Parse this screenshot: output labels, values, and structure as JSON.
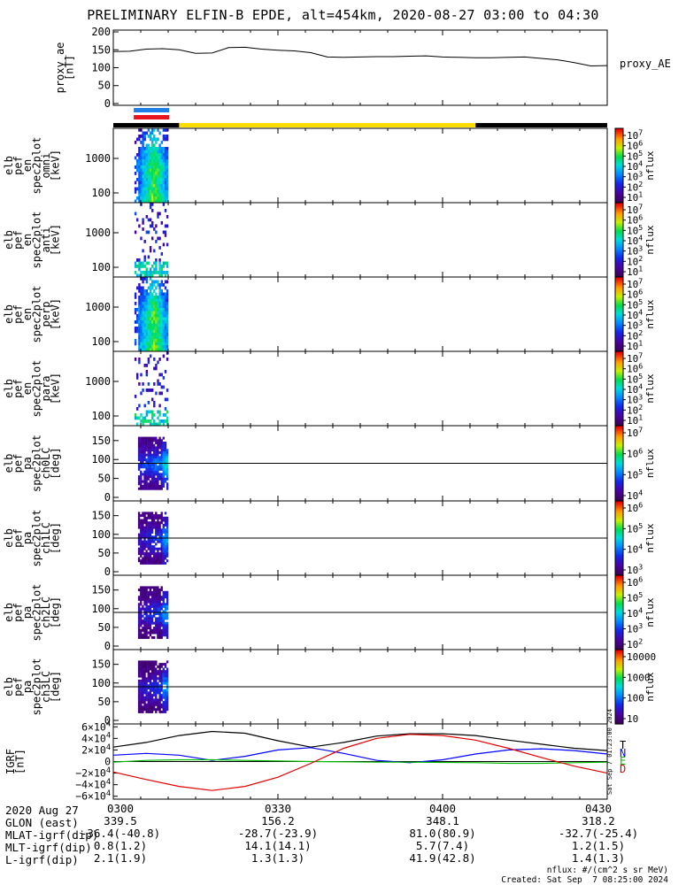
{
  "title": "PRELIMINARY ELFIN-B EPDE, alt=454km, 2020-08-27 03:00 to 04:30",
  "chart_data": [
    {
      "id": "proxy_ae",
      "type": "line",
      "ylabel_lines": [
        "proxy_ae",
        "[nT]"
      ],
      "legend": "proxy_AE",
      "yticks": [
        "200",
        "150",
        "100",
        "50",
        "0"
      ],
      "ylim": [
        -5,
        205
      ],
      "x_minutes": [
        0,
        3,
        6,
        9,
        12,
        15,
        18,
        21,
        24,
        27,
        30,
        33,
        36,
        39,
        42,
        45,
        48,
        51,
        54,
        57,
        60,
        63,
        66,
        69,
        72,
        75,
        78,
        81,
        84,
        87,
        90
      ],
      "values": [
        145,
        146,
        152,
        153,
        150,
        140,
        141,
        156,
        157,
        152,
        149,
        147,
        142,
        130,
        129,
        130,
        131,
        131,
        132,
        133,
        130,
        129,
        128,
        128,
        129,
        130,
        126,
        122,
        114,
        105,
        106
      ]
    },
    {
      "id": "orbit_bars",
      "type": "table",
      "segments": [
        {
          "color": "#000000",
          "start_min": 0,
          "end_min": 12
        },
        {
          "color": "#ffdd00",
          "start_min": 12,
          "end_min": 66
        },
        {
          "color": "#000000",
          "start_min": 66,
          "end_min": 90
        }
      ],
      "markers": [
        {
          "color": "#1e7fe8",
          "start_min": 0.5,
          "end_min": 7.0
        },
        {
          "color": "#e8141e",
          "start_min": 0.5,
          "end_min": 7.0
        }
      ]
    },
    {
      "id": "spec_omni",
      "type": "heatmap",
      "ylabel_lines": [
        "elb",
        "pef",
        "en",
        "spec2plot",
        "omni",
        "[keV]"
      ],
      "yticks": [
        "1000",
        "100"
      ],
      "colorbar_ticks": [
        "10^7",
        "10^6",
        "10^5",
        "10^4",
        "10^3",
        "10^2",
        "10^1"
      ],
      "colorbar_label": "nflux",
      "active_interval_min": [
        1.6,
        7.1
      ]
    },
    {
      "id": "spec_anti",
      "type": "heatmap",
      "ylabel_lines": [
        "elb",
        "pef",
        "en",
        "spec2plot",
        "anti",
        "[keV]"
      ],
      "yticks": [
        "1000",
        "100"
      ],
      "colorbar_ticks": [
        "10^7",
        "10^6",
        "10^5",
        "10^4",
        "10^3",
        "10^2",
        "10^1"
      ],
      "colorbar_label": "nflux",
      "active_interval_min": [
        1.6,
        7.1
      ]
    },
    {
      "id": "spec_perp",
      "type": "heatmap",
      "ylabel_lines": [
        "elb",
        "pef",
        "en",
        "spec2plot",
        "perp",
        "[keV]"
      ],
      "yticks": [
        "1000",
        "100"
      ],
      "colorbar_ticks": [
        "10^7",
        "10^6",
        "10^5",
        "10^4",
        "10^3",
        "10^2",
        "10^1"
      ],
      "colorbar_label": "nflux",
      "active_interval_min": [
        1.6,
        7.1
      ]
    },
    {
      "id": "spec_para",
      "type": "heatmap",
      "ylabel_lines": [
        "elb",
        "pef",
        "en",
        "spec2plot",
        "para",
        "[keV]"
      ],
      "yticks": [
        "1000",
        "100"
      ],
      "colorbar_ticks": [
        "10^7",
        "10^6",
        "10^5",
        "10^4",
        "10^3",
        "10^2",
        "10^1"
      ],
      "colorbar_label": "nflux",
      "active_interval_min": [
        1.6,
        7.1
      ]
    },
    {
      "id": "pa_ch0",
      "type": "heatmap",
      "ylabel_lines": [
        "elb",
        "pef",
        "pa",
        "spec2plot",
        "ch0LC",
        "[deg]"
      ],
      "yticks": [
        "150",
        "100",
        "50",
        "0"
      ],
      "ylim": [
        0,
        180
      ],
      "colorbar_ticks": [
        "10^7",
        "10^6",
        "10^5",
        "10^4"
      ],
      "colorbar_label": "nflux",
      "active_interval_min": [
        1.6,
        7.1
      ]
    },
    {
      "id": "pa_ch1",
      "type": "heatmap",
      "ylabel_lines": [
        "elb",
        "pef",
        "pa",
        "spec2plot",
        "ch1LC",
        "[deg]"
      ],
      "yticks": [
        "150",
        "100",
        "50",
        "0"
      ],
      "ylim": [
        0,
        180
      ],
      "colorbar_ticks": [
        "10^6",
        "10^5",
        "10^4",
        "10^3"
      ],
      "colorbar_label": "nflux",
      "active_interval_min": [
        1.6,
        7.1
      ]
    },
    {
      "id": "pa_ch2",
      "type": "heatmap",
      "ylabel_lines": [
        "elb",
        "pef",
        "pa",
        "spec2plot",
        "ch2LC",
        "[deg]"
      ],
      "yticks": [
        "150",
        "100",
        "50",
        "0"
      ],
      "ylim": [
        0,
        180
      ],
      "colorbar_ticks": [
        "10^6",
        "10^5",
        "10^4",
        "10^3",
        "10^2"
      ],
      "colorbar_label": "nflux",
      "active_interval_min": [
        1.6,
        7.1
      ]
    },
    {
      "id": "pa_ch3",
      "type": "heatmap",
      "ylabel_lines": [
        "elb",
        "pef",
        "pa",
        "spec2plot",
        "ch3LC",
        "[deg]"
      ],
      "yticks": [
        "150",
        "100",
        "50",
        "0"
      ],
      "ylim": [
        0,
        180
      ],
      "colorbar_ticks": [
        "10000",
        "1000",
        "100",
        "10"
      ],
      "colorbar_label": "nflux",
      "active_interval_min": [
        1.6,
        7.1
      ]
    },
    {
      "id": "igrf",
      "type": "line",
      "ylabel_lines": [
        "IGRF",
        "[nT]"
      ],
      "yticks": [
        "6×10^4",
        "4×10^4",
        "2×10^4",
        "0",
        "−2×10^4",
        "−4×10^4",
        "−6×10^4"
      ],
      "ylim": [
        -65000,
        65000
      ],
      "legend": [
        "T",
        "N",
        "E",
        "D"
      ],
      "side_note": "Sat Sep  7 01:23:00 2024",
      "x_minutes": [
        0,
        6,
        12,
        18,
        24,
        30,
        36,
        42,
        48,
        54,
        60,
        66,
        72,
        78,
        84,
        90
      ],
      "series": [
        {
          "name": "T",
          "color": "#000000",
          "values": [
            25000,
            33000,
            45000,
            52000,
            49000,
            36000,
            25000,
            33000,
            44000,
            48000,
            48000,
            45000,
            37000,
            30000,
            23000,
            19000
          ]
        },
        {
          "name": "N",
          "color": "#0000ff",
          "values": [
            11000,
            14000,
            11000,
            2000,
            9000,
            20000,
            24000,
            14000,
            2000,
            -2000,
            3000,
            13000,
            20000,
            22000,
            19000,
            13000
          ]
        },
        {
          "name": "E",
          "color": "#00bb00",
          "values": [
            -1000,
            2000,
            3000,
            3000,
            2000,
            1000,
            0,
            -500,
            -1000,
            -1000,
            -1500,
            -2000,
            -3000,
            -3000,
            -2000,
            -1000
          ]
        },
        {
          "name": "D",
          "color": "#e00000",
          "values": [
            -18000,
            -31000,
            -43000,
            -50000,
            -43000,
            -27000,
            -3000,
            23000,
            40000,
            47000,
            45000,
            37000,
            23000,
            7000,
            -8000,
            -20000
          ]
        }
      ]
    }
  ],
  "footer": {
    "rows": [
      {
        "label": "2020 Aug 27",
        "cells": [
          "0300",
          "0330",
          "0400",
          "0430"
        ]
      },
      {
        "label": "GLON (east)",
        "cells": [
          "339.5",
          "156.2",
          "348.1",
          "318.2"
        ]
      },
      {
        "label": "MLAT-igrf(dip)",
        "cells": [
          "-36.4(-40.8)",
          "-28.7(-23.9)",
          "81.0(80.9)",
          "-32.7(-25.4)"
        ]
      },
      {
        "label": "MLT-igrf(dip)",
        "cells": [
          "0.8(1.2)",
          "14.1(14.1)",
          "5.7(7.4)",
          "1.2(1.5)"
        ]
      },
      {
        "label": "L-igrf(dip)",
        "cells": [
          "2.1(1.9)",
          "1.3(1.3)",
          "41.9(42.8)",
          "1.4(1.3)"
        ]
      }
    ],
    "units_note": "nflux: #/(cm^2 s sr MeV)",
    "created": "Created: Sat Sep  7 08:25:00 2024"
  }
}
